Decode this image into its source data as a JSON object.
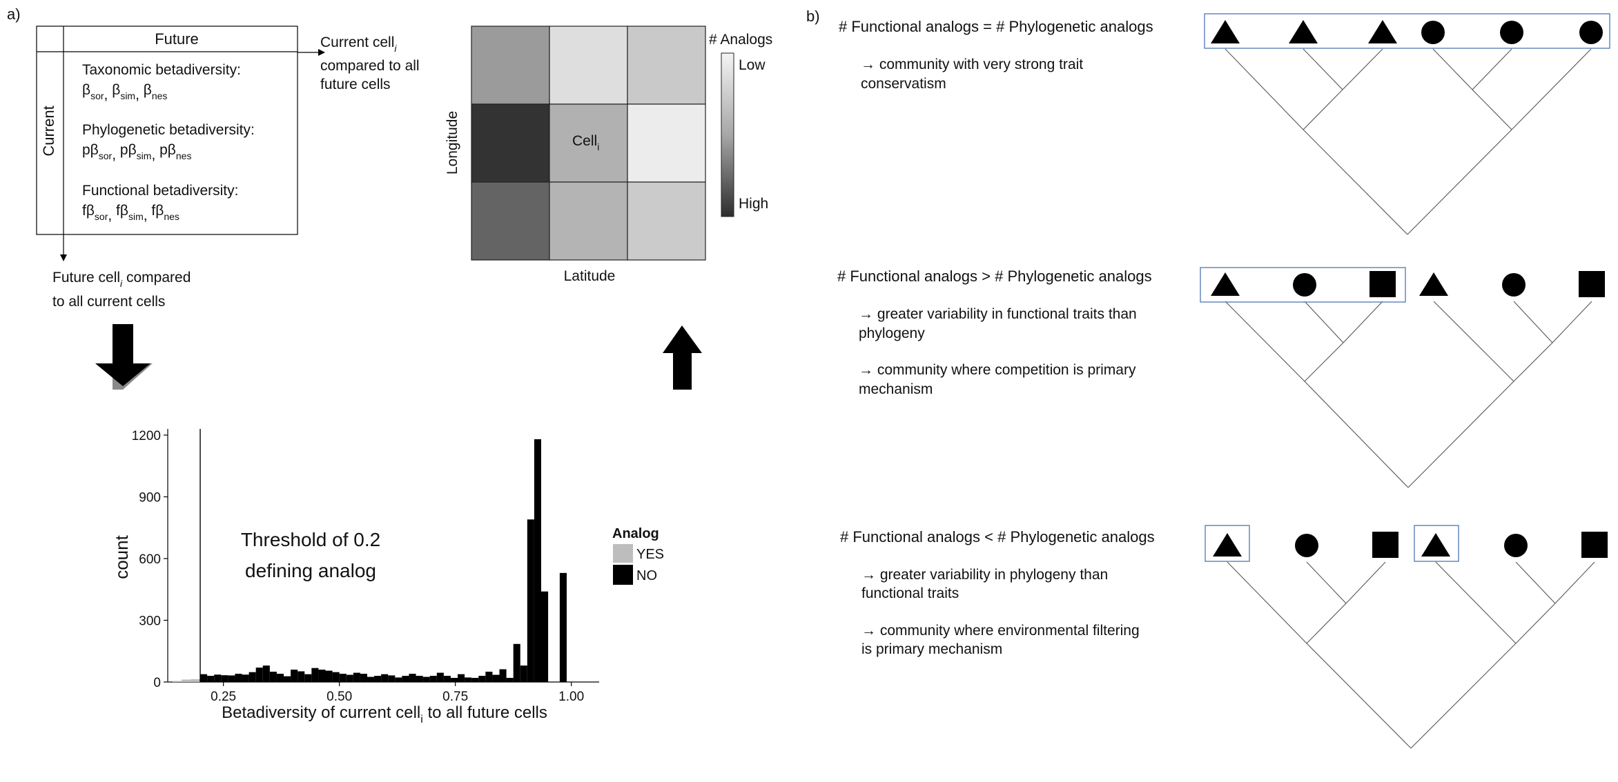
{
  "panel_a": {
    "label": "a)",
    "table": {
      "column_header": "Future",
      "row_header": "Current",
      "taxonomic": {
        "title": "Taxonomic betadiversity:",
        "beta": "β",
        "subs": [
          "sor",
          "sim",
          "nes"
        ]
      },
      "phylogenetic": {
        "title": "Phylogenetic betadiversity:",
        "beta": "pβ",
        "subs": [
          "sor",
          "sim",
          "nes"
        ]
      },
      "functional": {
        "title": "Functional betadiversity:",
        "beta": "fβ",
        "subs": [
          "sor",
          "sim",
          "nes"
        ]
      },
      "current_note": {
        "line1_pre": "Current cell",
        "line1_sub": "i",
        "line2": "compared to all",
        "line3": "future cells"
      },
      "future_note": {
        "line1_pre": "Future cell",
        "line1_sub": "i",
        "line1_post": " compared",
        "line2": "to all current cells"
      }
    },
    "grid": {
      "ylabel": "Longitude",
      "xlabel": "Latitude",
      "center_label": "Cell",
      "center_sub": "i",
      "legend_title": "# Analogs",
      "legend_low": "Low",
      "legend_high": "High",
      "cells": [
        [
          "#9b9b9b",
          "#dedede",
          "#c9c9c9"
        ],
        [
          "#333333",
          "#b1b1b1",
          "#ececec"
        ],
        [
          "#646464",
          "#b4b4b4",
          "#cbcbcb"
        ]
      ]
    },
    "histogram": {
      "threshold_line1": "Threshold of 0.2",
      "threshold_line2": "defining analog",
      "legend_title": "Analog",
      "xlabel_pre": "Betadiversity of current cell",
      "xlabel_sub": "i",
      "xlabel_post": " to all future cells"
    }
  },
  "panel_b": {
    "label": "b)",
    "scenarios": [
      {
        "heading": "# Functional analogs = # Phylogenetic analogs",
        "notes": [
          [
            "→ community with very strong trait",
            "conservatism"
          ]
        ]
      },
      {
        "heading": "# Functional analogs > # Phylogenetic analogs",
        "notes": [
          [
            "→ greater variability in functional traits than",
            "phylogeny"
          ],
          [
            "→ community where competition is primary",
            "mechanism"
          ]
        ]
      },
      {
        "heading": "# Functional analogs < # Phylogenetic analogs",
        "notes": [
          [
            "→ greater variability in phylogeny than",
            "functional traits"
          ],
          [
            "→ community where environmental filtering",
            "is primary mechanism"
          ]
        ]
      }
    ],
    "trees": [
      {
        "tips": [
          "triangle-icon",
          "triangle-icon",
          "triangle-icon",
          "circle-icon",
          "circle-icon",
          "circle-icon"
        ]
      },
      {
        "tips": [
          "triangle-icon",
          "circle-icon",
          "square-icon",
          "triangle-icon",
          "circle-icon",
          "square-icon"
        ]
      },
      {
        "tips": [
          "triangle-icon",
          "circle-icon",
          "square-icon",
          "triangle-icon",
          "circle-icon",
          "square-icon"
        ]
      }
    ],
    "colors": {
      "box": "#5b7fb8"
    }
  },
  "chart_data": {
    "type": "bar",
    "xlabel": "Betadiversity of current cell_i to all future cells",
    "ylabel": "count",
    "xlim": [
      0.13,
      1.06
    ],
    "ylim": [
      0,
      1230
    ],
    "xticks": [
      0.25,
      0.5,
      0.75,
      1.0
    ],
    "xtick_labels": [
      "0.25",
      "0.50",
      "0.75",
      "1.00"
    ],
    "yticks": [
      0,
      300,
      600,
      900,
      1200
    ],
    "ytick_labels": [
      "0",
      "300",
      "600",
      "900",
      "1200"
    ],
    "threshold": 0.2,
    "legend": {
      "title": "Analog",
      "entries": [
        {
          "name": "YES",
          "color": "#bdbdbd"
        },
        {
          "name": "NO",
          "color": "#000000"
        }
      ]
    },
    "series": [
      {
        "name": "YES",
        "color": "#bdbdbd",
        "bins": [
          [
            0.14,
            0.16,
            5
          ],
          [
            0.16,
            0.18,
            12
          ],
          [
            0.18,
            0.2,
            14
          ]
        ]
      },
      {
        "name": "NO",
        "color": "#000000",
        "bins": [
          [
            0.2,
            0.215,
            38
          ],
          [
            0.215,
            0.23,
            30
          ],
          [
            0.23,
            0.245,
            36
          ],
          [
            0.245,
            0.26,
            33
          ],
          [
            0.26,
            0.275,
            32
          ],
          [
            0.275,
            0.29,
            40
          ],
          [
            0.29,
            0.305,
            36
          ],
          [
            0.305,
            0.32,
            48
          ],
          [
            0.32,
            0.335,
            70
          ],
          [
            0.335,
            0.35,
            80
          ],
          [
            0.35,
            0.365,
            50
          ],
          [
            0.365,
            0.38,
            40
          ],
          [
            0.38,
            0.395,
            28
          ],
          [
            0.395,
            0.41,
            60
          ],
          [
            0.41,
            0.425,
            52
          ],
          [
            0.425,
            0.44,
            38
          ],
          [
            0.44,
            0.455,
            68
          ],
          [
            0.455,
            0.47,
            60
          ],
          [
            0.47,
            0.485,
            55
          ],
          [
            0.485,
            0.5,
            48
          ],
          [
            0.5,
            0.515,
            40
          ],
          [
            0.515,
            0.53,
            35
          ],
          [
            0.53,
            0.545,
            45
          ],
          [
            0.545,
            0.56,
            40
          ],
          [
            0.56,
            0.575,
            25
          ],
          [
            0.575,
            0.59,
            30
          ],
          [
            0.59,
            0.605,
            38
          ],
          [
            0.605,
            0.62,
            32
          ],
          [
            0.62,
            0.635,
            22
          ],
          [
            0.635,
            0.65,
            30
          ],
          [
            0.65,
            0.665,
            40
          ],
          [
            0.665,
            0.68,
            30
          ],
          [
            0.68,
            0.695,
            25
          ],
          [
            0.695,
            0.71,
            30
          ],
          [
            0.71,
            0.725,
            45
          ],
          [
            0.725,
            0.74,
            30
          ],
          [
            0.74,
            0.755,
            20
          ],
          [
            0.755,
            0.77,
            38
          ],
          [
            0.77,
            0.785,
            22
          ],
          [
            0.785,
            0.8,
            20
          ],
          [
            0.8,
            0.815,
            30
          ],
          [
            0.815,
            0.83,
            50
          ],
          [
            0.83,
            0.845,
            35
          ],
          [
            0.845,
            0.86,
            62
          ],
          [
            0.86,
            0.875,
            20
          ],
          [
            0.875,
            0.89,
            185
          ],
          [
            0.89,
            0.905,
            80
          ],
          [
            0.905,
            0.92,
            790
          ],
          [
            0.92,
            0.935,
            1180
          ],
          [
            0.935,
            0.95,
            440
          ],
          [
            0.975,
            0.99,
            530
          ]
        ]
      }
    ]
  }
}
